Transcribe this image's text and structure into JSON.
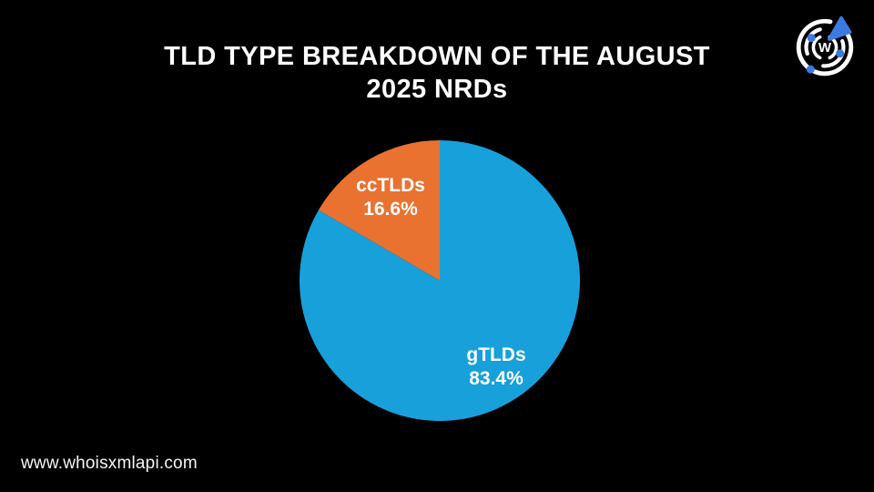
{
  "page": {
    "background_color": "#000000",
    "text_color": "#ffffff"
  },
  "header": {
    "title": "TLD TYPE BREAKDOWN OF THE AUGUST\n2025 NRDs"
  },
  "logo": {
    "name": "whoisxmlapi-logo",
    "letter": "W",
    "accent_blue": "#3B7BE0",
    "ring_color": "#ffffff"
  },
  "chart_data": {
    "type": "pie",
    "title": "TLD TYPE BREAKDOWN OF THE AUGUST 2025 NRDs",
    "start_angle_deg": 0,
    "direction": "clockwise",
    "legend_position": "none",
    "categories": [
      "gTLDs",
      "ccTLDs"
    ],
    "values": [
      83.4,
      16.6
    ],
    "slices": [
      {
        "label": "gTLDs",
        "value": 83.4,
        "pct_label": "83.4%",
        "color": "#18A0DB"
      },
      {
        "label": "ccTLDs",
        "value": 16.6,
        "pct_label": "16.6%",
        "color": "#E97231"
      }
    ]
  },
  "footer": {
    "url": "www.whoisxmlapi.com"
  }
}
